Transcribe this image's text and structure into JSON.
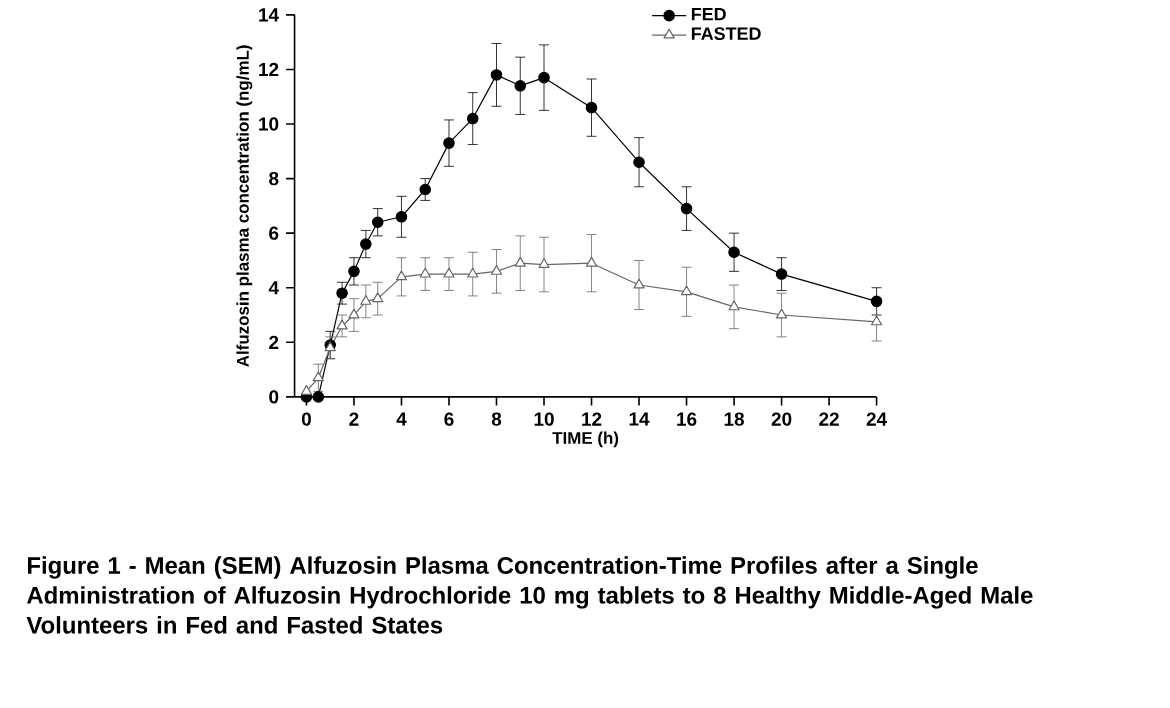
{
  "chart_data": {
    "type": "line",
    "xlabel": "TIME (h)",
    "ylabel": "Alfuzosin plasma concentration (ng/mL)",
    "annotations": [
      "Figure 1 - Mean (SEM) Alfuzosin Plasma Concentration-Time Profiles after a Single Administration of Alfuzosin Hydrochloride 10 mg tablets to 8 Healthy Middle-Aged Male Volunteers in Fed and Fasted States"
    ],
    "x": [
      0,
      0.5,
      1,
      1.5,
      2,
      2.5,
      3,
      4,
      5,
      6,
      7,
      8,
      9,
      10,
      12,
      14,
      16,
      18,
      20,
      24
    ],
    "series": [
      {
        "name": "FED",
        "color": "#000000",
        "marker": "circle",
        "values": [
          0,
          0,
          1.9,
          3.8,
          4.6,
          5.6,
          6.4,
          6.6,
          7.6,
          9.3,
          10.2,
          11.8,
          11.4,
          11.7,
          10.6,
          8.6,
          6.9,
          5.3,
          4.5,
          3.5
        ],
        "errors": [
          null,
          null,
          0.5,
          0.4,
          0.5,
          0.5,
          0.5,
          0.75,
          0.4,
          0.85,
          0.95,
          1.15,
          1.05,
          1.2,
          1.05,
          0.9,
          0.8,
          0.7,
          0.6,
          0.5
        ]
      },
      {
        "name": "FASTED",
        "color": "#666666",
        "marker": "triangle",
        "values": [
          0.2,
          0.7,
          1.8,
          2.6,
          3.0,
          3.5,
          3.6,
          4.4,
          4.5,
          4.5,
          4.5,
          4.6,
          4.9,
          4.85,
          4.9,
          4.1,
          3.85,
          3.3,
          3.0,
          2.75
        ],
        "errors": [
          null,
          0.5,
          0.4,
          0.4,
          0.6,
          0.6,
          0.6,
          0.7,
          0.6,
          0.6,
          0.8,
          0.8,
          1.0,
          1.0,
          1.05,
          0.9,
          0.9,
          0.8,
          0.8,
          0.7
        ]
      }
    ],
    "xlim": [
      -0.5,
      24
    ],
    "ylim": [
      0,
      14
    ],
    "xticks": [
      0,
      2,
      4,
      6,
      8,
      10,
      12,
      14,
      16,
      18,
      20,
      22,
      24
    ],
    "yticks": [
      0,
      2,
      4,
      6,
      8,
      10,
      12,
      14
    ],
    "legend": "top right",
    "line_style": "solid"
  }
}
